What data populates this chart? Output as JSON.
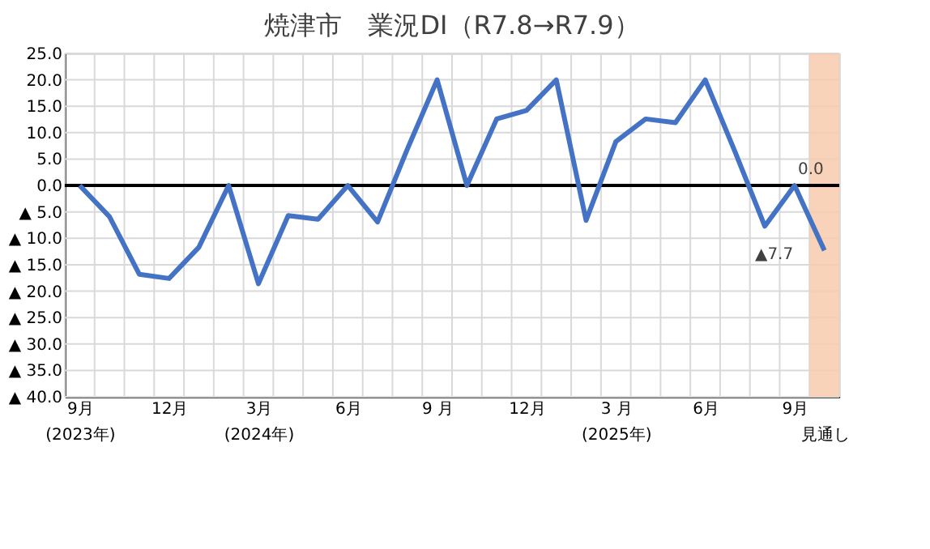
{
  "chart_data": {
    "type": "line",
    "title": "焼津市　業況DI（R7.8→R7.9）",
    "categories": [
      "9月\n(2023年)",
      null,
      null,
      "12月",
      null,
      null,
      "3月\n(2024年)",
      null,
      null,
      "6月",
      null,
      null,
      "9 月",
      null,
      null,
      "12月",
      null,
      null,
      "3 月\n(2025年)",
      null,
      null,
      "6月",
      null,
      null,
      "9月",
      "見通し"
    ],
    "series": [
      {
        "color": "#4472c4",
        "values": [
          0,
          -5.9,
          -16.8,
          -17.6,
          -11.7,
          0,
          -18.6,
          -5.7,
          -6.4,
          0,
          -6.9,
          6.9,
          20,
          0,
          12.6,
          14.2,
          20,
          -6.6,
          8.3,
          12.6,
          11.9,
          20,
          6.4,
          -7.7,
          0,
          -12.3
        ]
      }
    ],
    "ylim": [
      -40,
      25
    ],
    "yticks": [
      {
        "value": 25,
        "label": "25.0"
      },
      {
        "value": 20,
        "label": "20.0"
      },
      {
        "value": 15,
        "label": "15.0"
      },
      {
        "value": 10,
        "label": "10.0"
      },
      {
        "value": 5,
        "label": "5.0"
      },
      {
        "value": 0,
        "label": "0.0"
      },
      {
        "value": -5,
        "label": "▲ 5.0"
      },
      {
        "value": -10,
        "label": "▲ 10.0"
      },
      {
        "value": -15,
        "label": "▲ 15.0"
      },
      {
        "value": -20,
        "label": "▲ 20.0"
      },
      {
        "value": -25,
        "label": "▲ 25.0"
      },
      {
        "value": -30,
        "label": "▲ 30.0"
      },
      {
        "value": -35,
        "label": "▲ 35.0"
      },
      {
        "value": -40,
        "label": "▲ 40.0"
      }
    ],
    "grid": true,
    "marker": "none",
    "line_style": "solid",
    "ref_lines": [
      {
        "axis": "y",
        "value": 0,
        "color": "#000000"
      }
    ],
    "bands": [
      {
        "axis": "x",
        "from": "見通し",
        "to": "見通し",
        "color": "#f8cbad"
      }
    ],
    "annotations": [
      "▲7.7",
      {
        "text": "0.0",
        "x": "9月",
        "y": 0
      }
    ]
  }
}
